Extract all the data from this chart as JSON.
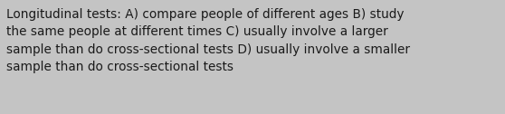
{
  "text": "Longitudinal tests: A) compare people of different ages B) study\nthe same people at different times C) usually involve a larger\nsample than do cross-sectional tests D) usually involve a smaller\nsample than do cross-sectional tests",
  "background_color": "#c4c4c4",
  "text_color": "#1a1a1a",
  "font_size": 9.8,
  "figsize": [
    5.58,
    1.26
  ],
  "dpi": 100
}
